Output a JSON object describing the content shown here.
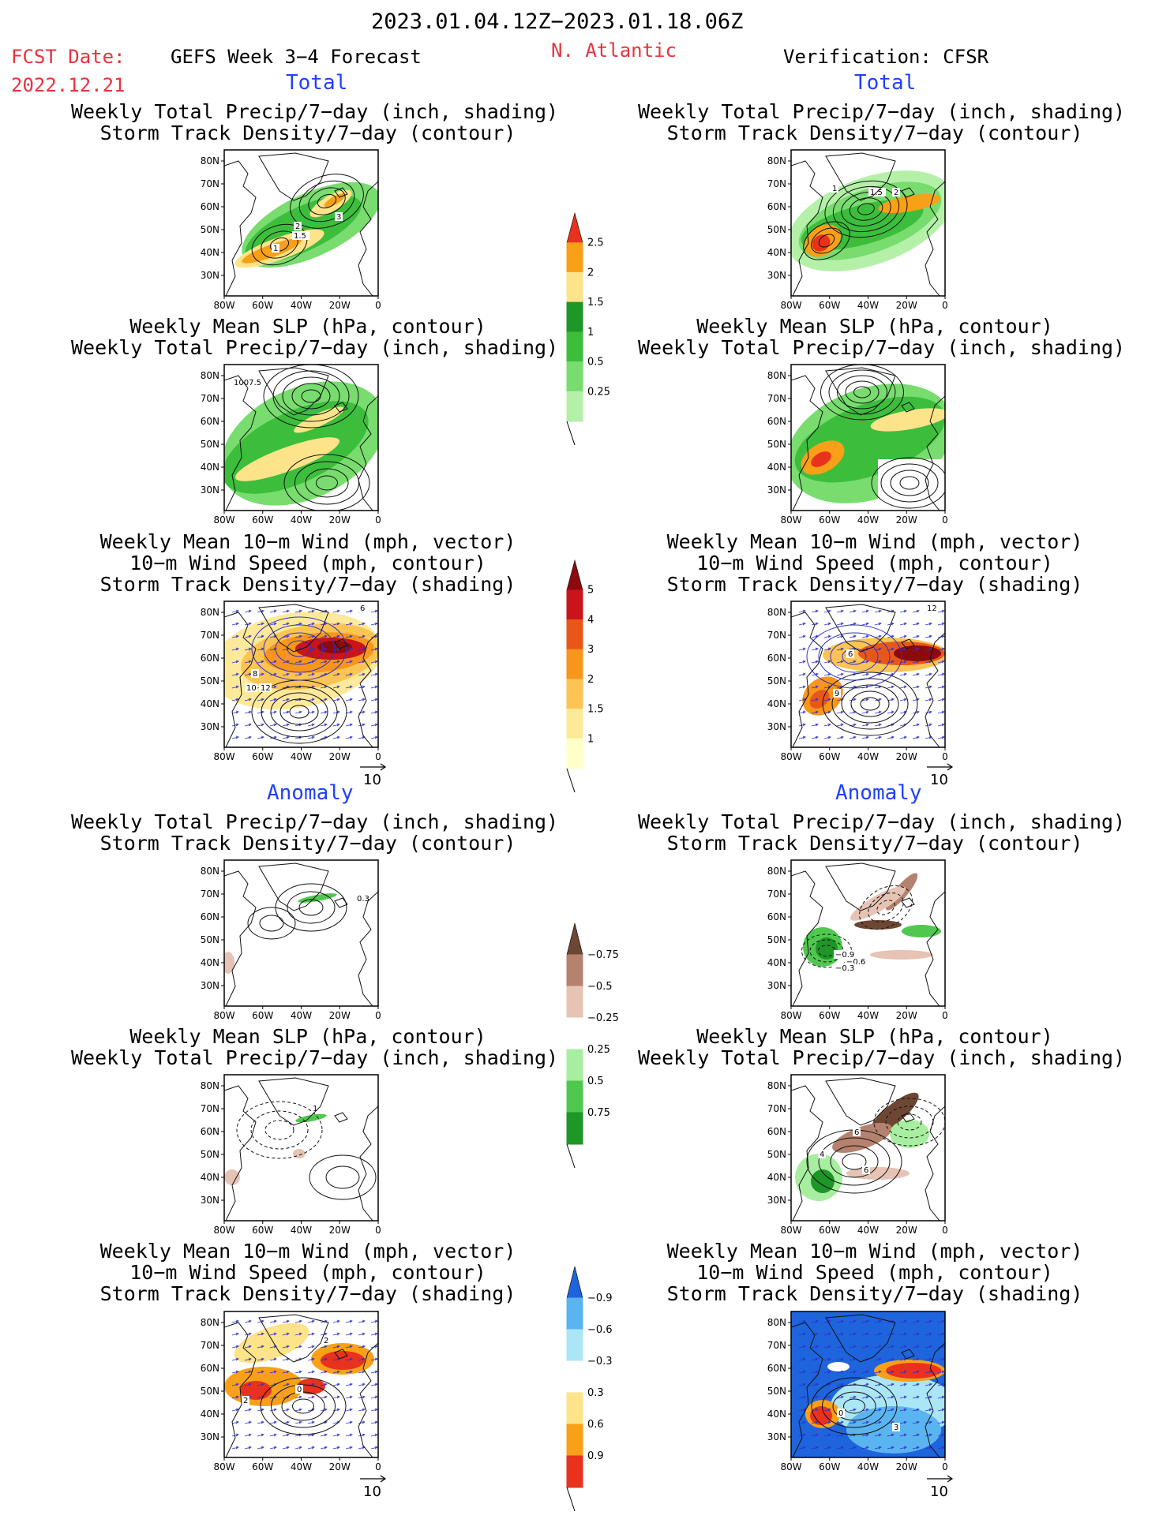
{
  "header": {
    "date_range": "2023.01.04.12Z−2023.01.18.06Z",
    "fcst_label": "FCST Date:",
    "fcst_date": "2022.12.21",
    "model": "GEFS Week 3−4 Forecast",
    "region": "N. Atlantic",
    "verification": "Verification: CFSR"
  },
  "sections": {
    "total_left": "Total",
    "total_right": "Total",
    "anomaly_left": "Anomaly",
    "anomaly_right": "Anomaly"
  },
  "titles": {
    "p1": [
      "Weekly Total Precip/7−day (inch, shading)",
      "Storm Track Density/7−day (contour)"
    ],
    "p2": [
      "Weekly Mean SLP (hPa, contour)",
      "Weekly Total Precip/7−day (inch, shading)"
    ],
    "p3": [
      "Weekly Mean 10−m Wind (mph, vector)",
      "10−m Wind Speed (mph, contour)",
      "Storm Track Density/7−day (shading)"
    ]
  },
  "axes": {
    "lat": [
      "80N",
      "70N",
      "60N",
      "50N",
      "40N",
      "30N"
    ],
    "lon": [
      "80W",
      "60W",
      "40W",
      "20W",
      "0"
    ]
  },
  "vector_ref": "10",
  "colorbars": {
    "precip_total": {
      "labels": [
        "0.25",
        "0.5",
        "1",
        "1.5",
        "2",
        "2.5"
      ],
      "colors": [
        "#b4f0a8",
        "#78dc6e",
        "#3cbe3c",
        "#1e9628",
        "#fde38a",
        "#f8a018",
        "#e8321e"
      ]
    },
    "storm_total": {
      "labels": [
        "1",
        "1.5",
        "2",
        "3",
        "4",
        "5"
      ],
      "colors": [
        "#ffffc8",
        "#fde99a",
        "#fbc453",
        "#f7951d",
        "#e8571a",
        "#c8141a",
        "#8c0a0e"
      ]
    },
    "precip_anom": {
      "labels": [
        "0.75",
        "0.5",
        "0.25",
        "−0.25",
        "−0.5",
        "−0.75"
      ],
      "colors": [
        "#1e9628",
        "#50c850",
        "#a8eea0",
        "#ffffff",
        "#e6c3b4",
        "#b4826e",
        "#6e4634"
      ]
    },
    "storm_anom": {
      "labels": [
        "0.9",
        "0.6",
        "0.3",
        "−0.3",
        "−0.6",
        "−0.9"
      ],
      "colors": [
        "#e8321e",
        "#f8a018",
        "#fde38a",
        "#ffffff",
        "#aae6f5",
        "#5ab4f0",
        "#1e64dc"
      ]
    }
  },
  "contour_labels": {
    "fc_track_total": [
      "1",
      "1.5",
      "2",
      "3"
    ],
    "ob_track_total": [
      "1",
      "1.5",
      "2"
    ],
    "fc_slp_total": [
      "1007.5"
    ],
    "fc_wind_total": [
      "6",
      "8",
      "10",
      "12"
    ],
    "ob_wind_total": [
      "6",
      "9",
      "12"
    ],
    "fc_track_anom": [
      "0.3"
    ],
    "ob_track_anom": [
      "−0.9",
      "−0.6",
      "−0.3"
    ],
    "fc_slp_anom": [
      "1"
    ],
    "ob_slp_anom": [
      "4",
      "6",
      "6"
    ],
    "fc_wind_anom": [
      "0",
      "2",
      "2"
    ],
    "ob_wind_anom": [
      "0",
      "3"
    ]
  }
}
